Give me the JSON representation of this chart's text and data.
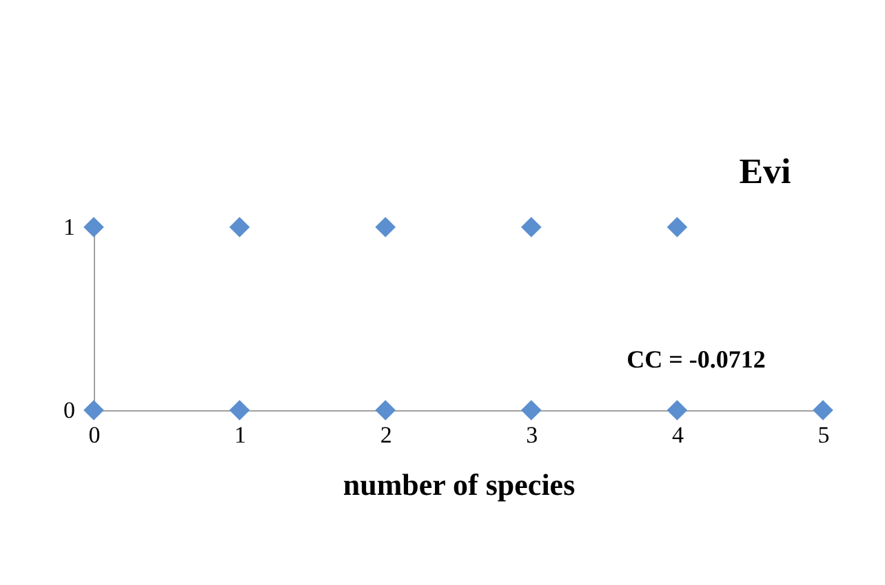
{
  "chart_data": {
    "type": "scatter",
    "title": "Evi",
    "xlabel": "number of species",
    "x": [
      0,
      1,
      2,
      3,
      4,
      0,
      1,
      2,
      3,
      4,
      5
    ],
    "values": [
      1,
      1,
      1,
      1,
      1,
      0,
      0,
      0,
      0,
      0,
      0
    ],
    "color": "#5b8fd0",
    "marker": "diamond",
    "xlim": [
      0,
      5
    ],
    "xticks": [
      0,
      1,
      2,
      3,
      4,
      5
    ],
    "ylim": [
      0,
      1
    ],
    "yticks": [
      0,
      1
    ],
    "grid": false,
    "annotations": [
      "CC = -0.0712"
    ]
  }
}
